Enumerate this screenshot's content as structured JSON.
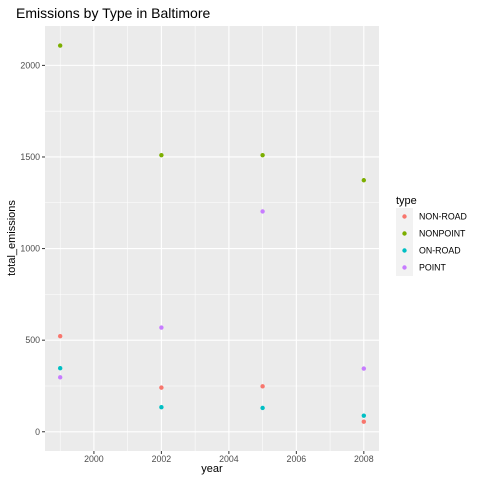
{
  "chart_data": {
    "type": "scatter",
    "title": "Emissions by Type in Baltimore",
    "xlabel": "year",
    "ylabel": "total_emissions",
    "xlim": [
      1998.55,
      2008.45
    ],
    "ylim": [
      -105,
      2215
    ],
    "x_ticks": [
      2000,
      2002,
      2004,
      2006,
      2008
    ],
    "y_ticks": [
      0,
      500,
      1000,
      1500,
      2000
    ],
    "grid": true,
    "legend_title": "type",
    "legend_position": "right",
    "series": [
      {
        "name": "NON-ROAD",
        "color": "#F8766D",
        "x": [
          1999,
          2002,
          2005,
          2008
        ],
        "y": [
          522,
          241,
          248,
          55
        ]
      },
      {
        "name": "NONPOINT",
        "color": "#7CAE00",
        "x": [
          1999,
          2002,
          2005,
          2008
        ],
        "y": [
          2108,
          1510,
          1510,
          1373
        ]
      },
      {
        "name": "ON-ROAD",
        "color": "#00BFC4",
        "x": [
          1999,
          2002,
          2005,
          2008
        ],
        "y": [
          347,
          134,
          130,
          88
        ]
      },
      {
        "name": "POINT",
        "color": "#C77CFF",
        "x": [
          1999,
          2002,
          2005,
          2008
        ],
        "y": [
          297,
          569,
          1203,
          345
        ]
      }
    ]
  }
}
